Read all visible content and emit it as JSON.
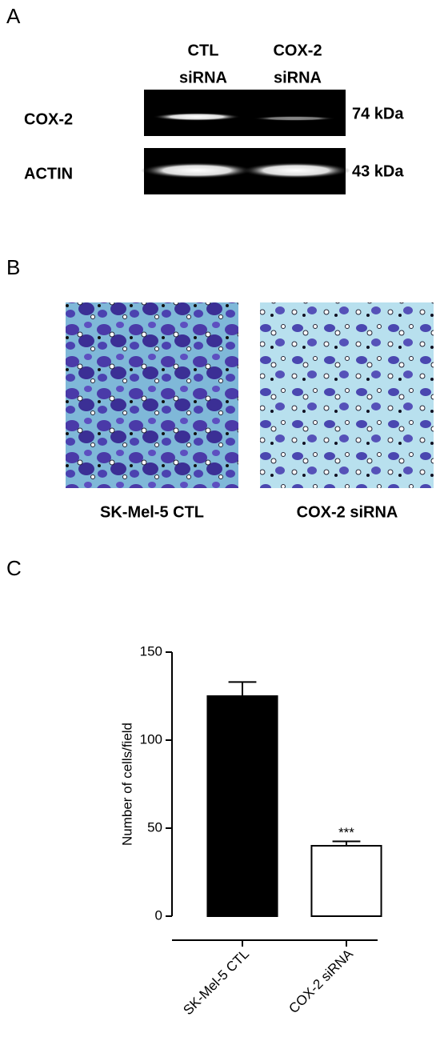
{
  "panel_a": {
    "letter": "A",
    "lanes": [
      [
        "CTL",
        "siRNA"
      ],
      [
        "COX-2",
        "siRNA"
      ]
    ],
    "rows": [
      "COX-2",
      "ACTIN"
    ],
    "sizes": [
      "74 kDa",
      "43 kDa"
    ]
  },
  "panel_b": {
    "letter": "B",
    "captions": [
      "SK-Mel-5 CTL",
      "COX-2 siRNA"
    ]
  },
  "panel_c": {
    "letter": "C"
  },
  "chart_data": {
    "type": "bar",
    "ylabel": "Number of cells/field",
    "categories": [
      "SK-Mel-5 CTL",
      "COX-2 siRNA"
    ],
    "values": [
      125,
      40
    ],
    "errors": [
      8,
      2.5
    ],
    "colors": [
      "#000000",
      "#ffffff"
    ],
    "annotation": "***",
    "ylim": [
      0,
      150
    ],
    "yticks": [
      0,
      50,
      100,
      150
    ]
  }
}
